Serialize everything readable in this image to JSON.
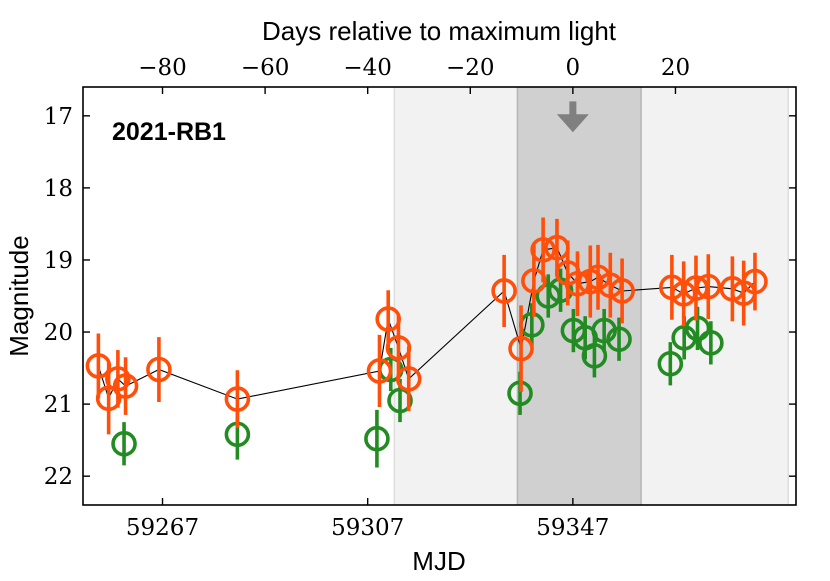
{
  "chart_data": {
    "type": "scatter",
    "title": "2021-RB1",
    "xlabel": "MJD",
    "ylabel": "Magnitude",
    "top_xlabel": "Days relative to maximum light",
    "xlim": [
      59251.5,
      59390.5
    ],
    "ylim": [
      22.4,
      16.6
    ],
    "y_inverted": true,
    "max_light_mjd": 59347,
    "x_ticks": [
      {
        "value": 59267,
        "label": "59267"
      },
      {
        "value": 59307,
        "label": "59307"
      },
      {
        "value": 59347,
        "label": "59347"
      }
    ],
    "y_ticks": [
      {
        "value": 17,
        "label": "17"
      },
      {
        "value": 18,
        "label": "18"
      },
      {
        "value": 19,
        "label": "19"
      },
      {
        "value": 20,
        "label": "20"
      },
      {
        "value": 21,
        "label": "21"
      },
      {
        "value": 22,
        "label": "22"
      }
    ],
    "top_ticks": [
      {
        "value": -80,
        "label": "−80"
      },
      {
        "value": -60,
        "label": "−60"
      },
      {
        "value": -40,
        "label": "−40"
      },
      {
        "value": -20,
        "label": "−20"
      },
      {
        "value": 0,
        "label": "0"
      },
      {
        "value": 20,
        "label": "20"
      }
    ],
    "shaded_regions": [
      {
        "x0": 59312.2,
        "x1": 59389.0,
        "color": "#f2f2f2",
        "edge": "#dddddd"
      },
      {
        "x0": 59336.2,
        "x1": 59360.3,
        "color": "#d0d0d0",
        "edge": "#b5b5b5"
      }
    ],
    "series": [
      {
        "name": "orange",
        "color": "#ff4f0a",
        "points": [
          {
            "x": 59254.5,
            "y": 20.47,
            "err": 0.45
          },
          {
            "x": 59256.5,
            "y": 20.92,
            "err": 0.5
          },
          {
            "x": 59258.3,
            "y": 20.65,
            "err": 0.4
          },
          {
            "x": 59259.8,
            "y": 20.75,
            "err": 0.4
          },
          {
            "x": 59266.3,
            "y": 20.52,
            "err": 0.45
          },
          {
            "x": 59281.6,
            "y": 20.93,
            "err": 0.4
          },
          {
            "x": 59309.3,
            "y": 20.54,
            "err": 0.5
          },
          {
            "x": 59311.0,
            "y": 19.82,
            "err": 0.4
          },
          {
            "x": 59313.0,
            "y": 20.22,
            "err": 0.45
          },
          {
            "x": 59315.0,
            "y": 20.65,
            "err": 0.45
          },
          {
            "x": 59333.6,
            "y": 19.43,
            "err": 0.5
          },
          {
            "x": 59336.9,
            "y": 20.23,
            "err": 0.6
          },
          {
            "x": 59339.4,
            "y": 19.29,
            "err": 0.5
          },
          {
            "x": 59341.2,
            "y": 18.86,
            "err": 0.45
          },
          {
            "x": 59343.9,
            "y": 18.83,
            "err": 0.4
          },
          {
            "x": 59346.0,
            "y": 19.18,
            "err": 0.45
          },
          {
            "x": 59347.9,
            "y": 19.33,
            "err": 0.45
          },
          {
            "x": 59350.4,
            "y": 19.3,
            "err": 0.5
          },
          {
            "x": 59351.9,
            "y": 19.24,
            "err": 0.45
          },
          {
            "x": 59354.3,
            "y": 19.35,
            "err": 0.45
          },
          {
            "x": 59356.6,
            "y": 19.43,
            "err": 0.45
          },
          {
            "x": 59366.3,
            "y": 19.38,
            "err": 0.45
          },
          {
            "x": 59368.6,
            "y": 19.47,
            "err": 0.45
          },
          {
            "x": 59371.0,
            "y": 19.39,
            "err": 0.45
          },
          {
            "x": 59373.4,
            "y": 19.37,
            "err": 0.45
          },
          {
            "x": 59378.1,
            "y": 19.4,
            "err": 0.45
          },
          {
            "x": 59380.3,
            "y": 19.46,
            "err": 0.45
          },
          {
            "x": 59382.5,
            "y": 19.3,
            "err": 0.4
          }
        ]
      },
      {
        "name": "green",
        "color": "#228b22",
        "points": [
          {
            "x": 59259.5,
            "y": 21.55,
            "err": 0.3
          },
          {
            "x": 59281.6,
            "y": 21.42,
            "err": 0.35
          },
          {
            "x": 59308.8,
            "y": 21.48,
            "err": 0.4
          },
          {
            "x": 59311.5,
            "y": 20.52,
            "err": 0.3
          },
          {
            "x": 59313.3,
            "y": 20.95,
            "err": 0.3
          },
          {
            "x": 59336.7,
            "y": 20.85,
            "err": 0.3
          },
          {
            "x": 59339.0,
            "y": 19.9,
            "err": 0.3
          },
          {
            "x": 59342.2,
            "y": 19.5,
            "err": 0.3
          },
          {
            "x": 59344.6,
            "y": 19.42,
            "err": 0.3
          },
          {
            "x": 59347.1,
            "y": 19.98,
            "err": 0.3
          },
          {
            "x": 59349.4,
            "y": 20.08,
            "err": 0.3
          },
          {
            "x": 59351.2,
            "y": 20.33,
            "err": 0.3
          },
          {
            "x": 59353.1,
            "y": 19.98,
            "err": 0.3
          },
          {
            "x": 59356.0,
            "y": 20.1,
            "err": 0.3
          },
          {
            "x": 59366.0,
            "y": 20.44,
            "err": 0.3
          },
          {
            "x": 59368.7,
            "y": 20.08,
            "err": 0.3
          },
          {
            "x": 59371.3,
            "y": 19.95,
            "err": 0.3
          },
          {
            "x": 59373.9,
            "y": 20.15,
            "err": 0.3
          }
        ]
      }
    ],
    "model_line": {
      "color": "#000000",
      "points": [
        {
          "x": 59254.5,
          "y": 20.47
        },
        {
          "x": 59256.5,
          "y": 20.92
        },
        {
          "x": 59258.3,
          "y": 20.65
        },
        {
          "x": 59259.8,
          "y": 20.75
        },
        {
          "x": 59266.3,
          "y": 20.52
        },
        {
          "x": 59281.6,
          "y": 20.93
        },
        {
          "x": 59309.3,
          "y": 20.54
        },
        {
          "x": 59311.0,
          "y": 19.82
        },
        {
          "x": 59313.0,
          "y": 20.22
        },
        {
          "x": 59315.0,
          "y": 20.65
        },
        {
          "x": 59333.6,
          "y": 19.43
        },
        {
          "x": 59336.9,
          "y": 20.23
        },
        {
          "x": 59339.4,
          "y": 19.29
        },
        {
          "x": 59341.2,
          "y": 18.86
        },
        {
          "x": 59343.9,
          "y": 18.83
        },
        {
          "x": 59346.0,
          "y": 19.18
        },
        {
          "x": 59347.9,
          "y": 19.33
        },
        {
          "x": 59350.4,
          "y": 19.3
        },
        {
          "x": 59351.9,
          "y": 19.24
        },
        {
          "x": 59354.3,
          "y": 19.35
        },
        {
          "x": 59356.6,
          "y": 19.43
        },
        {
          "x": 59366.3,
          "y": 19.38
        },
        {
          "x": 59368.6,
          "y": 19.47
        },
        {
          "x": 59371.0,
          "y": 19.39
        },
        {
          "x": 59373.4,
          "y": 19.37
        },
        {
          "x": 59378.1,
          "y": 19.4
        },
        {
          "x": 59380.3,
          "y": 19.46
        },
        {
          "x": 59382.5,
          "y": 19.3
        }
      ]
    },
    "arrow": {
      "x": 59347,
      "y_top": 16.8,
      "y_bottom": 17.2,
      "color": "#808080"
    }
  }
}
